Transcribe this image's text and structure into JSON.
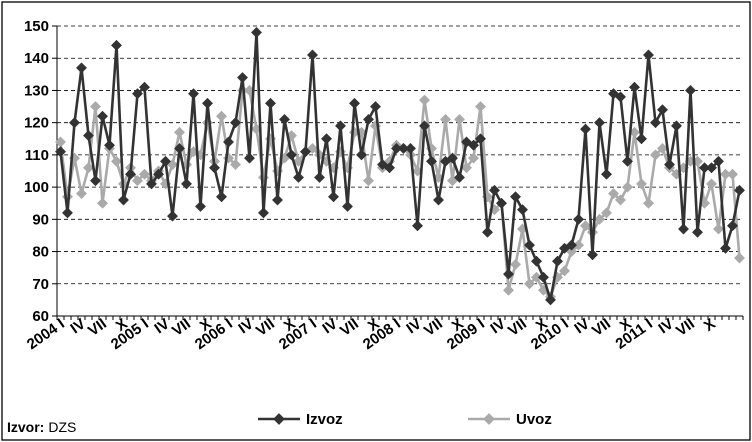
{
  "chart_data": {
    "type": "line",
    "title": "",
    "xlabel": "",
    "ylabel": "",
    "ylim": [
      60,
      150
    ],
    "yticks": [
      60,
      70,
      80,
      90,
      100,
      110,
      120,
      130,
      140,
      150
    ],
    "grid": true,
    "legend_position": "bottom",
    "x_tick_labels": [
      "2004 I",
      "IV",
      "VII",
      "X",
      "2005 I",
      "IV",
      "VII",
      "X",
      "2006 I",
      "IV",
      "VII",
      "X",
      "2007 I",
      "IV",
      "VII",
      "X",
      "2008 I",
      "IV",
      "VII",
      "X",
      "2009 I",
      "IV",
      "VII",
      "X",
      "2010 I",
      "IV",
      "VII",
      "X",
      "2011 I",
      "IV",
      "VII",
      "X"
    ],
    "series": [
      {
        "name": "Izvoz",
        "color": "#333333",
        "marker": "diamond",
        "values": [
          111,
          92,
          120,
          137,
          116,
          102,
          122,
          113,
          144,
          96,
          104,
          129,
          131,
          101,
          104,
          108,
          91,
          112,
          101,
          129,
          94,
          126,
          106,
          97,
          114,
          120,
          134,
          109,
          148,
          92,
          126,
          96,
          121,
          110,
          103,
          111,
          141,
          103,
          115,
          97,
          119,
          94,
          126,
          110,
          121,
          125,
          107,
          106,
          112,
          112,
          112,
          88,
          119,
          108,
          96,
          108,
          109,
          103,
          114,
          113,
          115,
          86,
          99,
          95,
          73,
          97,
          93,
          82,
          77,
          72,
          65,
          77,
          81,
          82,
          90,
          118,
          79,
          120,
          104,
          129,
          128,
          108,
          131,
          115,
          141,
          120,
          124,
          107,
          119,
          87,
          130,
          86,
          106,
          106,
          108,
          81,
          88,
          99
        ]
      },
      {
        "name": "Uvoz",
        "color": "#aaaaaa",
        "marker": "diamond",
        "values": [
          114,
          97,
          109,
          98,
          106,
          125,
          95,
          112,
          108,
          101,
          106,
          102,
          104,
          102,
          105,
          101,
          107,
          117,
          107,
          111,
          110,
          120,
          108,
          122,
          109,
          107,
          130,
          130,
          118,
          103,
          115,
          105,
          109,
          116,
          108,
          111,
          112,
          110,
          108,
          106,
          111,
          106,
          117,
          117,
          102,
          119,
          106,
          108,
          113,
          112,
          110,
          105,
          127,
          112,
          103,
          121,
          102,
          121,
          106,
          109,
          125,
          97,
          93,
          95,
          68,
          76,
          87,
          70,
          72,
          68,
          66,
          72,
          74,
          80,
          82,
          88,
          86,
          90,
          92,
          98,
          96,
          100,
          117,
          101,
          95,
          110,
          112,
          106,
          104,
          106,
          108,
          108,
          95,
          101,
          87,
          104,
          104,
          78
        ]
      }
    ]
  },
  "source": {
    "label": "Izvor:",
    "value": "DZS"
  }
}
